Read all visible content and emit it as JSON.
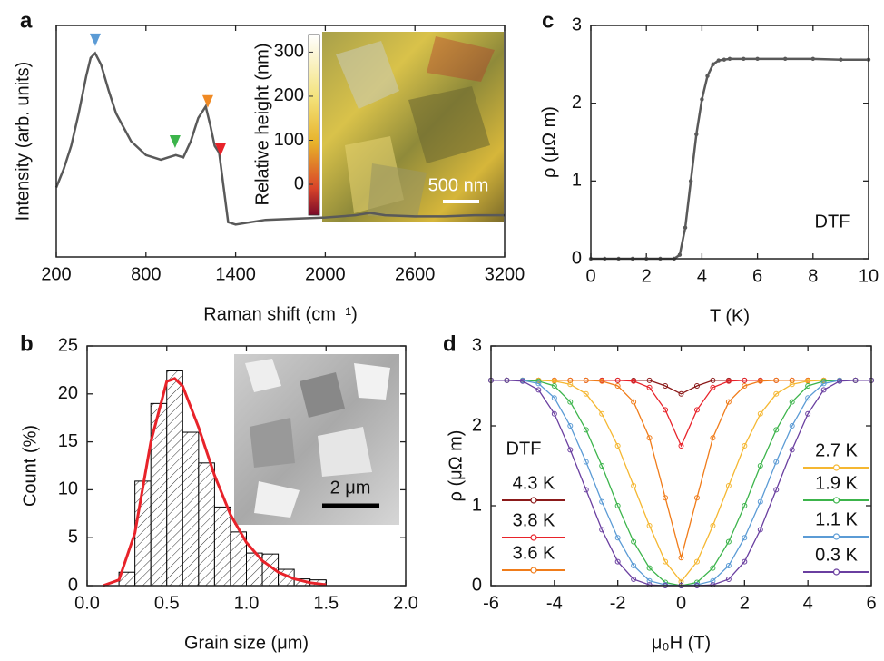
{
  "chart_data": [
    {
      "type": "line",
      "panel_label": "a",
      "xlabel": "Raman shift (cm⁻¹)",
      "ylabel": "Intensity (arb. units)",
      "x": [
        200,
        250,
        300,
        350,
        400,
        430,
        460,
        500,
        550,
        600,
        700,
        800,
        900,
        950,
        1000,
        1050,
        1100,
        1150,
        1200,
        1230,
        1260,
        1290,
        1320,
        1350,
        1400,
        1600,
        1800,
        2000,
        2200,
        2300,
        2400,
        2600,
        2800,
        3000,
        3200
      ],
      "values": [
        0.3,
        0.38,
        0.48,
        0.62,
        0.78,
        0.86,
        0.88,
        0.83,
        0.72,
        0.62,
        0.5,
        0.44,
        0.42,
        0.43,
        0.44,
        0.43,
        0.5,
        0.6,
        0.65,
        0.57,
        0.48,
        0.45,
        0.3,
        0.15,
        0.14,
        0.16,
        0.165,
        0.17,
        0.18,
        0.19,
        0.18,
        0.175,
        0.175,
        0.18,
        0.18
      ],
      "color": "#595959",
      "xlim": [
        200,
        3200
      ],
      "xticks": [
        200,
        800,
        1400,
        2000,
        2600,
        3200
      ],
      "ylim": [
        0,
        1
      ],
      "peak_markers": [
        {
          "x": 461,
          "color": "#5b9bd5"
        },
        {
          "x": 995,
          "color": "#3cb44b"
        },
        {
          "x": 1214,
          "color": "#f08a24"
        },
        {
          "x": 1299,
          "color": "#e8232a"
        }
      ],
      "inset": {
        "colorbar_label": "Relative height (nm)",
        "colorbar_ticks": [
          0,
          100,
          200,
          300
        ],
        "colorbar_lim": [
          -70,
          340
        ],
        "scale_bar": "500 nm"
      }
    },
    {
      "type": "histogram",
      "panel_label": "b",
      "xlabel": "Grain size (μm)",
      "ylabel": "Count (%)",
      "bins": [
        0.2,
        0.3,
        0.4,
        0.5,
        0.6,
        0.7,
        0.8,
        0.9,
        1.0,
        1.1,
        1.2,
        1.3,
        1.4,
        1.5
      ],
      "values": [
        1.4,
        10.9,
        19.0,
        22.4,
        16.0,
        12.8,
        8.2,
        5.6,
        3.4,
        3.3,
        1.7,
        0.7,
        0.6
      ],
      "color": "#000000",
      "fit": {
        "x": [
          0.1,
          0.2,
          0.3,
          0.4,
          0.5,
          0.55,
          0.6,
          0.7,
          0.8,
          0.9,
          1.0,
          1.1,
          1.2,
          1.3,
          1.4,
          1.5
        ],
        "values": [
          0,
          0.6,
          5.5,
          15,
          21.3,
          21.6,
          20.8,
          16.5,
          11.5,
          7.4,
          4.5,
          2.6,
          1.4,
          0.7,
          0.3,
          0.1
        ],
        "color": "#e8232a"
      },
      "xlim": [
        0,
        2
      ],
      "xticks": [
        {
          "value": 0,
          "label": "0.0"
        },
        0.5,
        {
          "value": 1,
          "label": "1.0"
        },
        1.5,
        {
          "value": 2,
          "label": "2.0"
        }
      ],
      "ylim": [
        0,
        25
      ],
      "yticks": [
        0,
        5,
        10,
        15,
        20,
        25
      ],
      "inset": {
        "scale_bar": "2 μm"
      }
    },
    {
      "type": "line",
      "panel_label": "c",
      "xlabel": "T (K)",
      "ylabel": "ρ (μΩ m)",
      "annotation": "DTF",
      "x": [
        0,
        0.5,
        1,
        1.5,
        2,
        2.5,
        3,
        3.2,
        3.4,
        3.6,
        3.8,
        4,
        4.2,
        4.4,
        4.6,
        4.8,
        5,
        5.5,
        6,
        7,
        8,
        9,
        10
      ],
      "values": [
        0,
        0,
        0,
        0,
        0,
        0,
        0,
        0.05,
        0.4,
        1.0,
        1.6,
        2.05,
        2.35,
        2.5,
        2.55,
        2.56,
        2.57,
        2.57,
        2.57,
        2.57,
        2.57,
        2.56,
        2.56
      ],
      "color": "#595959",
      "xlim": [
        0,
        10
      ],
      "xticks": [
        0,
        2,
        4,
        6,
        8,
        10
      ],
      "ylim": [
        0,
        3
      ],
      "yticks": [
        0,
        1,
        2,
        3
      ]
    },
    {
      "type": "line",
      "panel_label": "d",
      "xlabel": "μ₀H (T)",
      "ylabel": "ρ (μΩ m)",
      "annotation": "DTF",
      "x": [
        -6,
        -5.5,
        -5,
        -4.5,
        -4,
        -3.5,
        -3,
        -2.5,
        -2,
        -1.5,
        -1,
        -0.5,
        0,
        0.5,
        1,
        1.5,
        2,
        2.5,
        3,
        3.5,
        4,
        4.5,
        5,
        5.5,
        6
      ],
      "series": [
        {
          "name": "4.3 K",
          "color": "#8b1a1a",
          "values": [
            2.57,
            2.57,
            2.57,
            2.57,
            2.57,
            2.57,
            2.57,
            2.57,
            2.57,
            2.57,
            2.57,
            2.5,
            2.4,
            2.5,
            2.57,
            2.57,
            2.57,
            2.57,
            2.57,
            2.57,
            2.57,
            2.57,
            2.57,
            2.57,
            2.57
          ]
        },
        {
          "name": "3.8 K",
          "color": "#e8232a",
          "values": [
            2.57,
            2.57,
            2.57,
            2.57,
            2.57,
            2.57,
            2.57,
            2.57,
            2.57,
            2.56,
            2.48,
            2.2,
            1.75,
            2.2,
            2.48,
            2.56,
            2.57,
            2.57,
            2.57,
            2.57,
            2.57,
            2.57,
            2.57,
            2.57,
            2.57
          ]
        },
        {
          "name": "3.6 K",
          "color": "#f07c1a",
          "values": [
            2.57,
            2.57,
            2.57,
            2.57,
            2.57,
            2.57,
            2.57,
            2.56,
            2.5,
            2.3,
            1.85,
            1.1,
            0.35,
            1.1,
            1.85,
            2.3,
            2.5,
            2.56,
            2.57,
            2.57,
            2.57,
            2.57,
            2.57,
            2.57,
            2.57
          ]
        },
        {
          "name": "2.7 K",
          "color": "#f5b731",
          "values": [
            2.57,
            2.57,
            2.57,
            2.57,
            2.56,
            2.52,
            2.4,
            2.15,
            1.75,
            1.25,
            0.75,
            0.3,
            0.05,
            0.3,
            0.75,
            1.25,
            1.75,
            2.15,
            2.4,
            2.52,
            2.56,
            2.57,
            2.57,
            2.57,
            2.57
          ]
        },
        {
          "name": "1.9 K",
          "color": "#3cb44b",
          "values": [
            2.57,
            2.57,
            2.57,
            2.56,
            2.5,
            2.3,
            1.95,
            1.5,
            1.0,
            0.55,
            0.22,
            0.04,
            0,
            0.04,
            0.22,
            0.55,
            1.0,
            1.5,
            1.95,
            2.3,
            2.5,
            2.56,
            2.57,
            2.57,
            2.57
          ]
        },
        {
          "name": "1.1 K",
          "color": "#5b9bd5",
          "values": [
            2.57,
            2.57,
            2.57,
            2.53,
            2.35,
            2.0,
            1.55,
            1.05,
            0.6,
            0.25,
            0.06,
            0.01,
            0,
            0.01,
            0.06,
            0.25,
            0.6,
            1.05,
            1.55,
            2.0,
            2.35,
            2.53,
            2.57,
            2.57,
            2.57
          ]
        },
        {
          "name": "0.3 K",
          "color": "#6a3fa0",
          "values": [
            2.57,
            2.57,
            2.56,
            2.45,
            2.15,
            1.7,
            1.2,
            0.7,
            0.3,
            0.08,
            0.01,
            0,
            0,
            0,
            0.01,
            0.08,
            0.3,
            0.7,
            1.2,
            1.7,
            2.15,
            2.45,
            2.56,
            2.57,
            2.57
          ]
        }
      ],
      "xlim": [
        -6,
        6
      ],
      "xticks": [
        -6,
        -4,
        -2,
        0,
        2,
        4,
        6
      ],
      "ylim": [
        0,
        3
      ],
      "yticks": [
        0,
        1,
        2,
        3
      ]
    }
  ]
}
